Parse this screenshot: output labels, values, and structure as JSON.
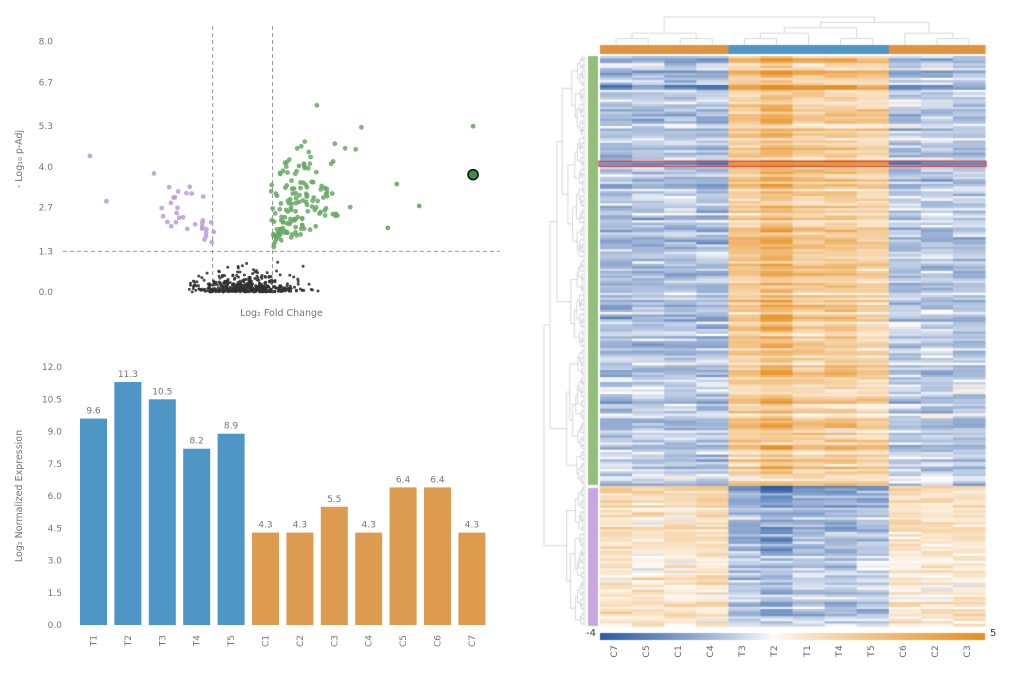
{
  "page": {
    "background": "#ffffff"
  },
  "chart_data": [
    {
      "type": "scatter",
      "name": "volcano-plot",
      "xlabel": "Log₂ Fold Change",
      "ylabel": "- Log₁₀ p-Adj",
      "xlim": [
        -6,
        8.6
      ],
      "ylim": [
        0,
        8.5
      ],
      "yticks": [
        8.0,
        6.7,
        5.3,
        4.0,
        2.7,
        1.3,
        0.0
      ],
      "ytick_labels": [
        "8.0",
        "6.7",
        "5.3",
        "4.0",
        "2.7",
        "1.3",
        "0.0"
      ],
      "threshold_lines": {
        "horizontal_y": 1.3,
        "vertical_x": [
          -1,
          1
        ]
      },
      "series": [
        {
          "name": "not-significant",
          "color": "#303030",
          "marker_radius": 1.5,
          "count": 430,
          "x_center": 0.15,
          "x_spread": 0.8,
          "y_scale": 0.42,
          "y_cap": 1.55
        },
        {
          "name": "up-regulated",
          "color": "#68a964",
          "marker_radius": 2.4,
          "count": 150,
          "x_start": 0.95,
          "x_spread": 1.25,
          "y_start": 1.38,
          "y_spread": 1.35,
          "xy_slope": 0.45
        },
        {
          "name": "down-regulated",
          "color": "#bc9cd8",
          "marker_radius": 2.4,
          "count": 32,
          "x_start": -0.95,
          "x_spread": 1.0,
          "y_start": 1.38,
          "y_spread": 0.75,
          "xy_slope": 0.5
        }
      ],
      "extra_points": [
        {
          "x": 7.7,
          "y": 5.3,
          "series": "up-regulated"
        },
        {
          "x": 5.9,
          "y": 2.75,
          "series": "up-regulated"
        },
        {
          "x": 5.15,
          "y": 3.45,
          "series": "up-regulated"
        },
        {
          "x": 4.85,
          "y": 2.05,
          "series": "up-regulated"
        },
        {
          "x": -5.1,
          "y": 4.35,
          "series": "down-regulated"
        },
        {
          "x": -4.55,
          "y": 2.9,
          "series": "down-regulated"
        }
      ],
      "highlight_point": {
        "x": 7.7,
        "y": 3.75,
        "fill": "#3e8e4b",
        "stroke": "#111111",
        "radius": 5
      },
      "seed": 13,
      "axis_color": "#757575"
    },
    {
      "type": "bar",
      "name": "expression-bar-chart",
      "ylabel": "Log₂ Normalized Expression",
      "categories": [
        "T1",
        "T2",
        "T3",
        "T4",
        "T5",
        "C1",
        "C2",
        "C3",
        "C4",
        "C5",
        "C6",
        "C7"
      ],
      "values": [
        9.6,
        11.3,
        10.5,
        8.2,
        8.9,
        4.3,
        4.3,
        5.5,
        4.3,
        6.4,
        6.4,
        4.3
      ],
      "bar_labels": [
        "9.6",
        "11.3",
        "10.5",
        "8.2",
        "8.9",
        "4.3",
        "4.3",
        "5.5",
        "4.3",
        "6.4",
        "6.4",
        "4.3"
      ],
      "groups": [
        "T",
        "T",
        "T",
        "T",
        "T",
        "C",
        "C",
        "C",
        "C",
        "C",
        "C",
        "C"
      ],
      "group_colors": {
        "T": "#4e96c5",
        "C": "#dd9b50"
      },
      "ylim": [
        0,
        12
      ],
      "yticks": [
        0.0,
        1.5,
        3.0,
        4.5,
        6.0,
        7.5,
        9.0,
        10.5,
        12.0
      ],
      "ytick_labels": [
        "0.0",
        "1.5",
        "3.0",
        "4.5",
        "6.0",
        "7.5",
        "9.0",
        "10.5",
        "12.0"
      ],
      "axis_color": "#757575"
    },
    {
      "type": "heatmap",
      "name": "clustered-expression-heatmap",
      "columns": [
        "C7",
        "C5",
        "C1",
        "C4",
        "T3",
        "T2",
        "T1",
        "T4",
        "T5",
        "C6",
        "C2",
        "C3"
      ],
      "column_groups": [
        "C",
        "C",
        "C",
        "C",
        "T",
        "T",
        "T",
        "T",
        "T",
        "C",
        "C",
        "C"
      ],
      "column_band_colors": {
        "C": "#e0923d",
        "T": "#4e96c5"
      },
      "row_clusters": [
        {
          "name": "up-regulated",
          "rows": 178,
          "band_color": "#92c07c"
        },
        {
          "name": "down-regulated",
          "rows": 58,
          "band_color": "#c7a8de"
        }
      ],
      "color_scale": {
        "min": -4,
        "max": 5,
        "min_color": "#2a5ba5",
        "mid_color": "#ffffff",
        "max_color": "#e78f1e"
      },
      "legend": {
        "min_label": "-4",
        "max_label": "5"
      },
      "highlighted_row_index": 44,
      "highlight_color": "#e03030",
      "column_intensity": [
        1.0,
        0.9,
        0.95,
        1.0,
        1.0,
        1.45,
        0.95,
        1.05,
        0.8,
        0.85,
        0.8,
        0.9
      ],
      "cluster_means": {
        "up": {
          "T": 2.0,
          "C": -1.25
        },
        "down": {
          "T": -1.25,
          "C": 0.95
        }
      },
      "noise_sd": 0.45,
      "special_rows": [
        {
          "row": 1,
          "amplitude": 1.9
        },
        {
          "row": 6,
          "amplitude": 1.7
        },
        {
          "row": 12,
          "amplitude": 2.1
        },
        {
          "row": 13,
          "amplitude": 2.3
        },
        {
          "row": 44,
          "amplitude": 2.7
        },
        {
          "row": 178,
          "amplitude": 2.3
        },
        {
          "row": 179,
          "amplitude": 1.9
        }
      ],
      "column_tree": [
        [
          [
            0,
            1
          ],
          [
            2,
            3
          ]
        ],
        [
          [
            [
              [
                4,
                5
              ],
              6
            ],
            [
              7,
              8
            ]
          ],
          [
            9,
            [
              10,
              11
            ]
          ]
        ]
      ],
      "dendrogram_color": "#c2c6cb",
      "seed": 99,
      "label_color": "#616161"
    }
  ]
}
